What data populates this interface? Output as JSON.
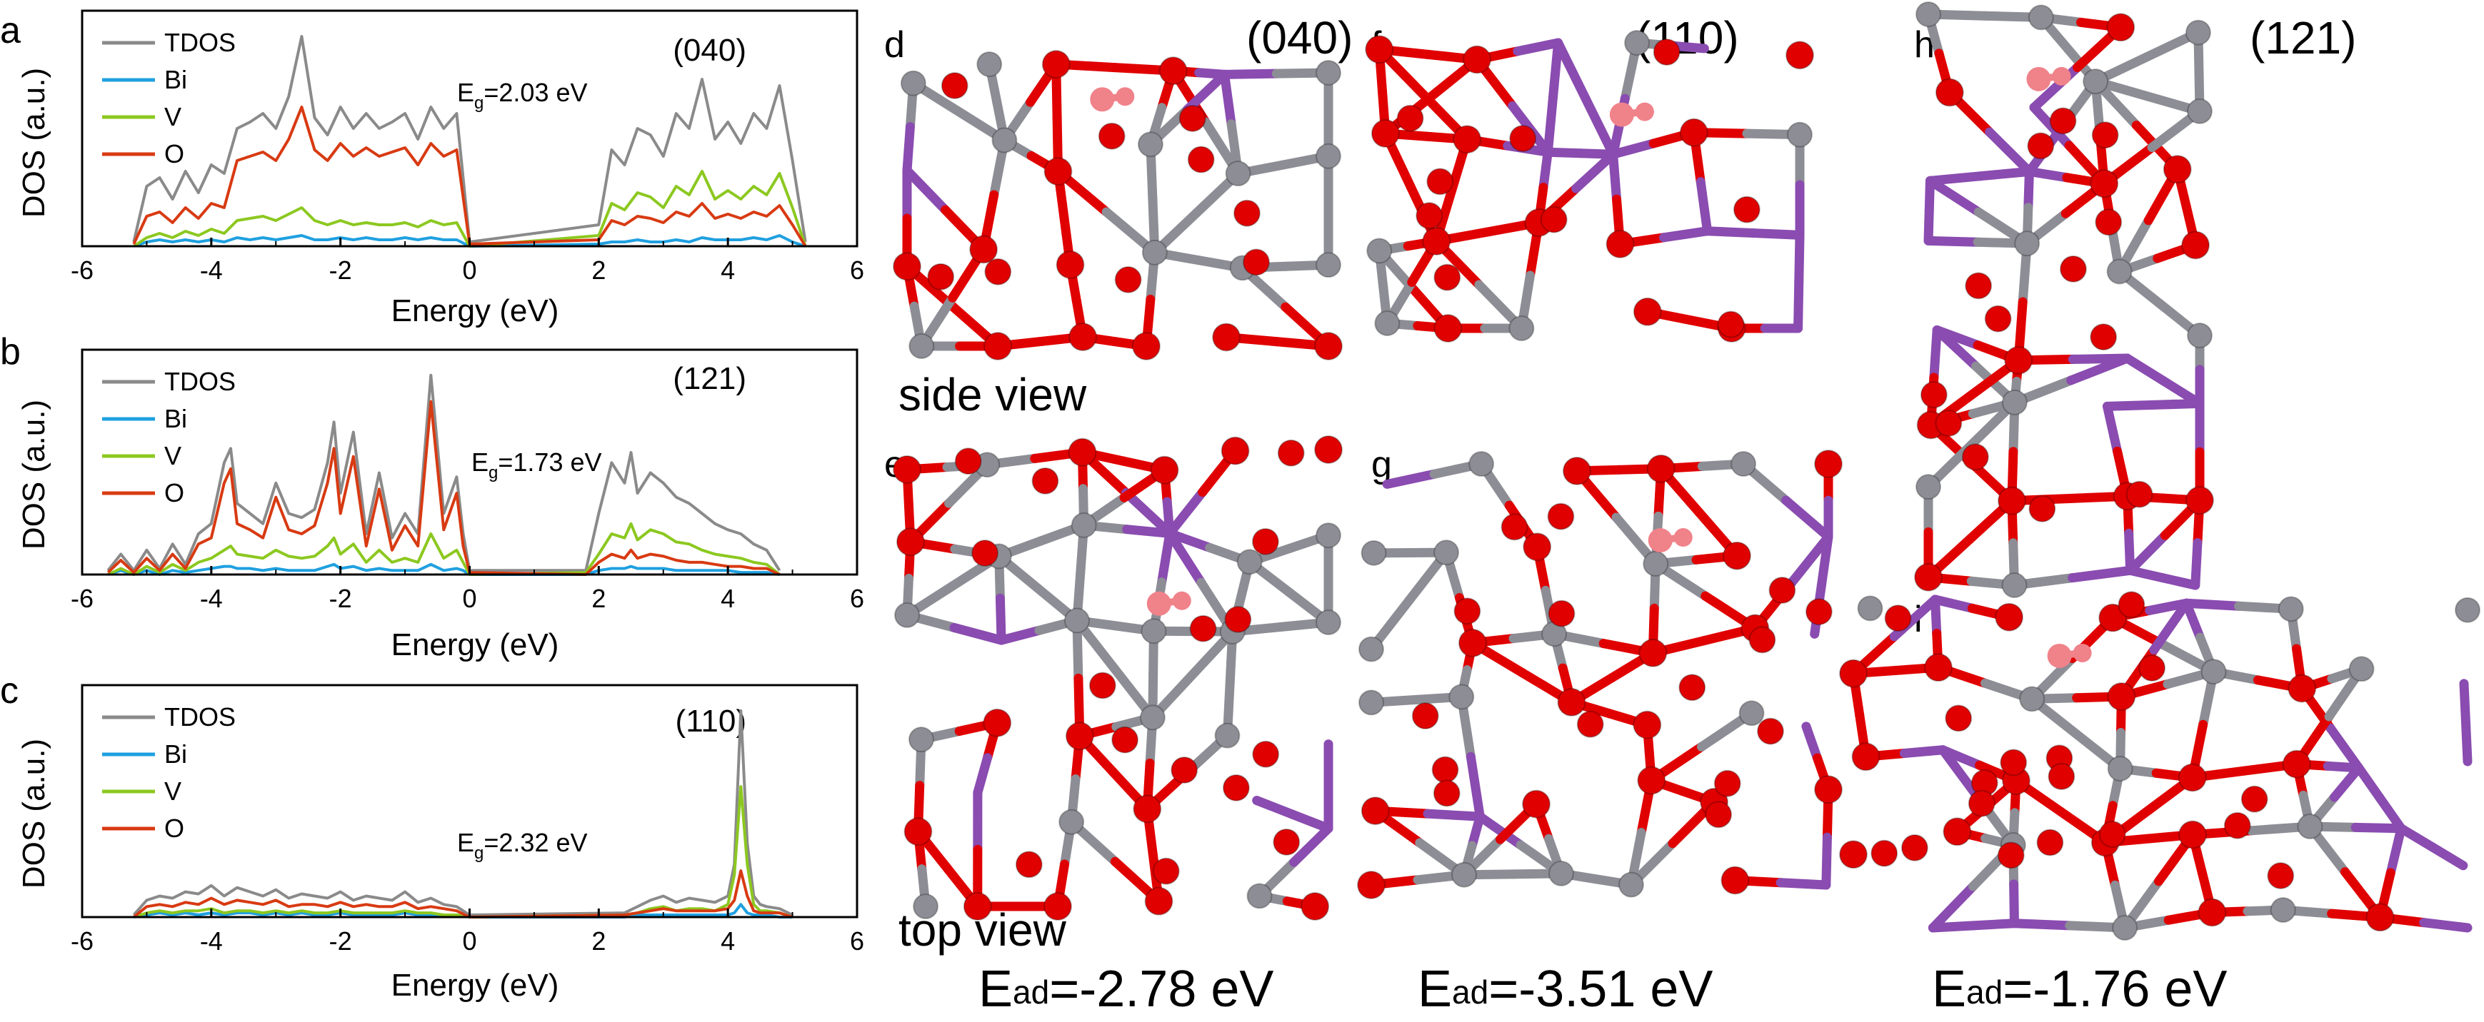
{
  "colors": {
    "TDOS": "#8a8a8a",
    "Bi": "#1fa0e0",
    "V": "#8cc820",
    "O": "#d83a12",
    "atom_O": "#e00000",
    "atom_V": "#8d8d95",
    "atom_Bi": "#8a4cb0",
    "atom_H": "#f0828a"
  },
  "chart_data": [
    {
      "panel": "a",
      "type": "line",
      "surface": "(040)",
      "gap_label": "E",
      "gap_sub": "g",
      "gap_value": "=2.03 eV",
      "xlabel": "Energy (eV)",
      "ylabel": "DOS (a.u.)",
      "xlim": [
        -6,
        6
      ],
      "ylim": [
        0,
        1
      ],
      "xticks": [
        "-6",
        "-4",
        "-2",
        "0",
        "2",
        "4",
        "6"
      ],
      "legend": [
        "TDOS",
        "Bi",
        "V",
        "O"
      ],
      "x": [
        -5.2,
        -5.0,
        -4.8,
        -4.6,
        -4.4,
        -4.2,
        -4.0,
        -3.8,
        -3.6,
        -3.4,
        -3.2,
        -3.0,
        -2.8,
        -2.6,
        -2.4,
        -2.2,
        -2.0,
        -1.8,
        -1.6,
        -1.4,
        -1.2,
        -1.0,
        -0.8,
        -0.6,
        -0.4,
        -0.2,
        0.0,
        2.0,
        2.2,
        2.4,
        2.6,
        2.8,
        3.0,
        3.2,
        3.4,
        3.6,
        3.8,
        4.0,
        4.2,
        4.4,
        4.6,
        4.8,
        5.0,
        5.2
      ],
      "series": [
        {
          "name": "TDOS",
          "values": [
            0.02,
            0.28,
            0.32,
            0.22,
            0.35,
            0.25,
            0.38,
            0.34,
            0.55,
            0.58,
            0.62,
            0.55,
            0.7,
            0.98,
            0.6,
            0.52,
            0.65,
            0.55,
            0.62,
            0.55,
            0.58,
            0.62,
            0.5,
            0.65,
            0.55,
            0.62,
            0.02,
            0.1,
            0.45,
            0.38,
            0.55,
            0.52,
            0.42,
            0.62,
            0.55,
            0.78,
            0.5,
            0.58,
            0.48,
            0.62,
            0.55,
            0.75,
            0.4,
            0.02
          ]
        },
        {
          "name": "Bi",
          "values": [
            0.0,
            0.02,
            0.03,
            0.02,
            0.03,
            0.02,
            0.03,
            0.02,
            0.04,
            0.03,
            0.04,
            0.03,
            0.04,
            0.05,
            0.03,
            0.03,
            0.04,
            0.03,
            0.04,
            0.03,
            0.03,
            0.04,
            0.03,
            0.04,
            0.03,
            0.03,
            0.0,
            0.01,
            0.02,
            0.02,
            0.03,
            0.02,
            0.02,
            0.03,
            0.02,
            0.04,
            0.03,
            0.03,
            0.03,
            0.04,
            0.03,
            0.05,
            0.02,
            0.0
          ]
        },
        {
          "name": "V",
          "values": [
            0.0,
            0.04,
            0.06,
            0.04,
            0.07,
            0.05,
            0.08,
            0.06,
            0.12,
            0.13,
            0.14,
            0.12,
            0.15,
            0.18,
            0.12,
            0.1,
            0.12,
            0.1,
            0.11,
            0.1,
            0.1,
            0.11,
            0.09,
            0.12,
            0.1,
            0.11,
            0.0,
            0.05,
            0.2,
            0.17,
            0.25,
            0.23,
            0.18,
            0.28,
            0.24,
            0.35,
            0.22,
            0.26,
            0.22,
            0.28,
            0.24,
            0.34,
            0.18,
            0.0
          ]
        },
        {
          "name": "O",
          "values": [
            0.01,
            0.14,
            0.16,
            0.11,
            0.18,
            0.13,
            0.2,
            0.18,
            0.4,
            0.42,
            0.44,
            0.4,
            0.5,
            0.65,
            0.45,
            0.4,
            0.48,
            0.42,
            0.46,
            0.42,
            0.44,
            0.46,
            0.38,
            0.48,
            0.42,
            0.45,
            0.01,
            0.03,
            0.12,
            0.1,
            0.14,
            0.13,
            0.11,
            0.16,
            0.14,
            0.2,
            0.13,
            0.15,
            0.13,
            0.16,
            0.14,
            0.19,
            0.1,
            0.0
          ]
        }
      ]
    },
    {
      "panel": "b",
      "type": "line",
      "surface": "(121)",
      "gap_label": "E",
      "gap_sub": "g",
      "gap_value": "=1.73 eV",
      "xlabel": "Energy (eV)",
      "ylabel": "DOS (a.u.)",
      "xlim": [
        -6,
        6
      ],
      "ylim": [
        0,
        1
      ],
      "xticks": [
        "-6",
        "-4",
        "-2",
        "0",
        "2",
        "4",
        "6"
      ],
      "legend": [
        "TDOS",
        "Bi",
        "V",
        "O"
      ],
      "x": [
        -5.6,
        -5.4,
        -5.2,
        -5.0,
        -4.8,
        -4.6,
        -4.4,
        -4.2,
        -4.0,
        -3.8,
        -3.7,
        -3.6,
        -3.4,
        -3.2,
        -3.0,
        -2.8,
        -2.6,
        -2.4,
        -2.2,
        -2.1,
        -2.0,
        -1.8,
        -1.6,
        -1.4,
        -1.2,
        -1.0,
        -0.8,
        -0.6,
        -0.4,
        -0.2,
        -0.1,
        0.0,
        1.8,
        2.0,
        2.2,
        2.4,
        2.5,
        2.6,
        2.8,
        3.0,
        3.2,
        3.4,
        3.6,
        3.8,
        4.0,
        4.2,
        4.4,
        4.6,
        4.8
      ],
      "series": [
        {
          "name": "TDOS",
          "values": [
            0.02,
            0.1,
            0.02,
            0.12,
            0.03,
            0.15,
            0.05,
            0.2,
            0.25,
            0.55,
            0.62,
            0.35,
            0.3,
            0.25,
            0.45,
            0.3,
            0.28,
            0.32,
            0.55,
            0.75,
            0.4,
            0.7,
            0.2,
            0.5,
            0.18,
            0.3,
            0.2,
            0.98,
            0.3,
            0.48,
            0.2,
            0.02,
            0.02,
            0.3,
            0.55,
            0.45,
            0.6,
            0.4,
            0.5,
            0.45,
            0.38,
            0.35,
            0.3,
            0.25,
            0.22,
            0.2,
            0.15,
            0.12,
            0.02
          ]
        },
        {
          "name": "Bi",
          "values": [
            0.0,
            0.02,
            0.0,
            0.02,
            0.0,
            0.02,
            0.01,
            0.02,
            0.03,
            0.04,
            0.04,
            0.03,
            0.03,
            0.02,
            0.03,
            0.02,
            0.02,
            0.02,
            0.04,
            0.05,
            0.03,
            0.04,
            0.02,
            0.03,
            0.02,
            0.02,
            0.02,
            0.05,
            0.02,
            0.03,
            0.02,
            0.0,
            0.0,
            0.02,
            0.03,
            0.03,
            0.04,
            0.03,
            0.03,
            0.03,
            0.02,
            0.02,
            0.02,
            0.02,
            0.02,
            0.01,
            0.01,
            0.01,
            0.0
          ]
        },
        {
          "name": "V",
          "values": [
            0.0,
            0.03,
            0.0,
            0.04,
            0.01,
            0.05,
            0.02,
            0.06,
            0.08,
            0.12,
            0.14,
            0.1,
            0.09,
            0.08,
            0.12,
            0.09,
            0.08,
            0.09,
            0.14,
            0.18,
            0.1,
            0.15,
            0.06,
            0.12,
            0.06,
            0.08,
            0.06,
            0.2,
            0.08,
            0.12,
            0.06,
            0.0,
            0.01,
            0.1,
            0.2,
            0.18,
            0.25,
            0.17,
            0.22,
            0.2,
            0.16,
            0.15,
            0.12,
            0.1,
            0.09,
            0.08,
            0.06,
            0.05,
            0.0
          ]
        },
        {
          "name": "O",
          "values": [
            0.01,
            0.07,
            0.01,
            0.08,
            0.02,
            0.1,
            0.03,
            0.15,
            0.18,
            0.45,
            0.52,
            0.25,
            0.22,
            0.18,
            0.38,
            0.22,
            0.2,
            0.24,
            0.45,
            0.62,
            0.3,
            0.58,
            0.14,
            0.42,
            0.12,
            0.24,
            0.14,
            0.85,
            0.22,
            0.4,
            0.14,
            0.01,
            0.0,
            0.06,
            0.1,
            0.08,
            0.12,
            0.08,
            0.1,
            0.09,
            0.07,
            0.06,
            0.06,
            0.05,
            0.04,
            0.04,
            0.03,
            0.03,
            0.0
          ]
        }
      ]
    },
    {
      "panel": "c",
      "type": "line",
      "surface": "(110)",
      "gap_label": "E",
      "gap_sub": "g",
      "gap_value": "=2.32 eV",
      "xlabel": "Energy (eV)",
      "ylabel": "DOS (a.u.)",
      "xlim": [
        -6,
        6
      ],
      "ylim": [
        0,
        1
      ],
      "xticks": [
        "-6",
        "-4",
        "-2",
        "0",
        "2",
        "4",
        "6"
      ],
      "legend": [
        "TDOS",
        "Bi",
        "V",
        "O"
      ],
      "x": [
        -5.2,
        -5.0,
        -4.8,
        -4.6,
        -4.4,
        -4.2,
        -4.0,
        -3.8,
        -3.6,
        -3.4,
        -3.2,
        -3.0,
        -2.8,
        -2.6,
        -2.4,
        -2.2,
        -2.0,
        -1.8,
        -1.6,
        -1.4,
        -1.2,
        -1.0,
        -0.8,
        -0.6,
        -0.4,
        -0.2,
        0.0,
        2.4,
        2.6,
        2.8,
        3.0,
        3.2,
        3.4,
        3.6,
        3.8,
        4.0,
        4.1,
        4.2,
        4.3,
        4.4,
        4.5,
        4.6,
        4.8,
        5.0
      ],
      "series": [
        {
          "name": "TDOS",
          "values": [
            0.01,
            0.08,
            0.1,
            0.09,
            0.12,
            0.11,
            0.15,
            0.1,
            0.14,
            0.12,
            0.1,
            0.13,
            0.09,
            0.11,
            0.1,
            0.09,
            0.12,
            0.08,
            0.1,
            0.09,
            0.08,
            0.12,
            0.07,
            0.09,
            0.06,
            0.05,
            0.01,
            0.02,
            0.05,
            0.08,
            0.1,
            0.07,
            0.09,
            0.08,
            0.07,
            0.1,
            0.25,
            0.98,
            0.35,
            0.1,
            0.06,
            0.05,
            0.04,
            0.01
          ]
        },
        {
          "name": "Bi",
          "values": [
            0.0,
            0.01,
            0.02,
            0.01,
            0.02,
            0.01,
            0.02,
            0.01,
            0.02,
            0.02,
            0.01,
            0.02,
            0.01,
            0.02,
            0.01,
            0.01,
            0.02,
            0.01,
            0.01,
            0.01,
            0.01,
            0.02,
            0.01,
            0.01,
            0.01,
            0.01,
            0.0,
            0.0,
            0.01,
            0.01,
            0.01,
            0.01,
            0.01,
            0.01,
            0.01,
            0.01,
            0.02,
            0.06,
            0.02,
            0.01,
            0.01,
            0.01,
            0.0,
            0.0
          ]
        },
        {
          "name": "V",
          "values": [
            0.0,
            0.02,
            0.03,
            0.02,
            0.03,
            0.03,
            0.04,
            0.02,
            0.03,
            0.03,
            0.02,
            0.03,
            0.02,
            0.03,
            0.02,
            0.02,
            0.03,
            0.02,
            0.02,
            0.02,
            0.02,
            0.03,
            0.02,
            0.02,
            0.01,
            0.01,
            0.0,
            0.01,
            0.02,
            0.04,
            0.05,
            0.03,
            0.04,
            0.04,
            0.03,
            0.06,
            0.2,
            0.62,
            0.25,
            0.06,
            0.03,
            0.03,
            0.02,
            0.0
          ]
        },
        {
          "name": "O",
          "values": [
            0.0,
            0.05,
            0.06,
            0.05,
            0.07,
            0.06,
            0.09,
            0.06,
            0.08,
            0.07,
            0.06,
            0.08,
            0.05,
            0.06,
            0.06,
            0.05,
            0.07,
            0.05,
            0.06,
            0.05,
            0.05,
            0.07,
            0.04,
            0.05,
            0.04,
            0.03,
            0.0,
            0.01,
            0.02,
            0.03,
            0.04,
            0.03,
            0.03,
            0.03,
            0.03,
            0.04,
            0.08,
            0.22,
            0.1,
            0.03,
            0.02,
            0.02,
            0.02,
            0.0
          ]
        }
      ]
    }
  ],
  "structures": [
    {
      "panel": "d",
      "surface": "(040)",
      "view": "side view"
    },
    {
      "panel": "e",
      "view": "top view"
    },
    {
      "panel": "f",
      "surface": "(110)"
    },
    {
      "panel": "g"
    },
    {
      "panel": "h",
      "surface": "(121)"
    },
    {
      "panel": "i"
    }
  ],
  "adsorption": [
    {
      "label": "E",
      "sub": "ad",
      "value": "=-2.78 eV"
    },
    {
      "label": "E",
      "sub": "ad",
      "value": "=-3.51 eV"
    },
    {
      "label": "E",
      "sub": "ad",
      "value": "=-1.76 eV"
    }
  ]
}
